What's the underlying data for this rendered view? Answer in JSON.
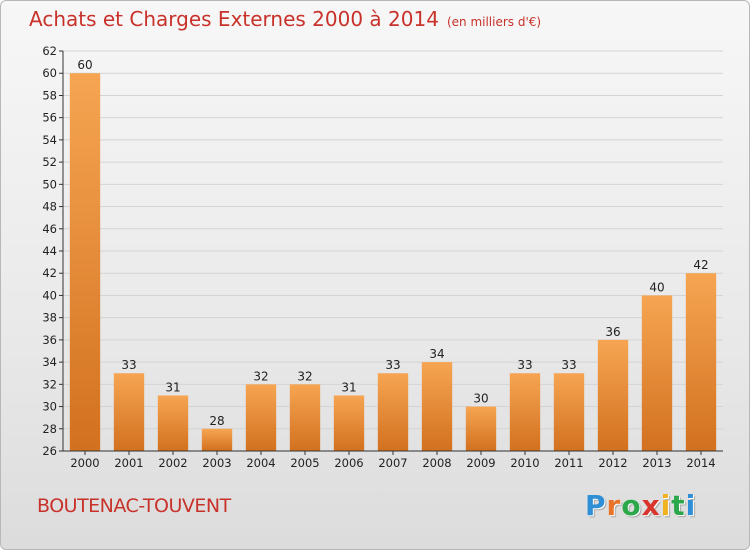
{
  "header": {
    "title": "Achats et Charges Externes 2000 à 2014",
    "subtitle": "(en milliers d'€)"
  },
  "footer": {
    "commune": "BOUTENAC-TOUVENT",
    "logo_letters": [
      "P",
      "r",
      "o",
      "x",
      "i",
      "t",
      "i"
    ],
    "logo_colors": [
      "#2f8fd6",
      "#e8732a",
      "#2ba84a",
      "#d8342c",
      "#f0b21e",
      "#2ba84a",
      "#2f8fd6"
    ]
  },
  "colors": {
    "title": "#c8322a",
    "bar_top": "#f6a552",
    "bar_bottom": "#d2711f",
    "axis": "#333333",
    "grid": "#d4d4d4"
  },
  "chart_data": {
    "type": "bar",
    "categories": [
      "2000",
      "2001",
      "2002",
      "2003",
      "2004",
      "2005",
      "2006",
      "2007",
      "2008",
      "2009",
      "2010",
      "2011",
      "2012",
      "2013",
      "2014"
    ],
    "values": [
      60,
      33,
      31,
      28,
      32,
      32,
      31,
      33,
      34,
      30,
      33,
      33,
      36,
      40,
      42
    ],
    "ylim": [
      26,
      62
    ],
    "yticks": [
      26,
      28,
      30,
      32,
      34,
      36,
      38,
      40,
      42,
      44,
      46,
      48,
      50,
      52,
      54,
      56,
      58,
      60,
      62
    ],
    "grid": true,
    "data_labels": true
  }
}
